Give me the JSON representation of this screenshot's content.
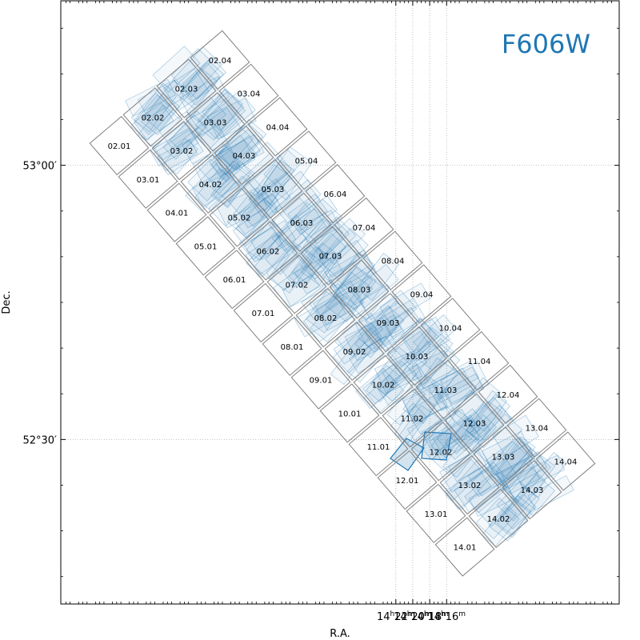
{
  "colors": {
    "accent": "#1f77b4",
    "tile_outline": "#808080",
    "grid": "#b0b0b0"
  },
  "chart_data": {
    "type": "scatter",
    "title": "",
    "filter_label": "F606W",
    "xlabel": "R.A.",
    "ylabel": "Dec.",
    "x_axis_direction": "decreasing-right",
    "xlim_min": [
      2221.6,
      2155.6
    ],
    "ylim_arcmin": [
      3132,
      3198
    ],
    "x_ticks": [
      {
        "value_min": 2182,
        "label": "14h22m"
      },
      {
        "value_min": 2180,
        "label": "14h20m"
      },
      {
        "value_min": 2178,
        "label": "14h18m"
      },
      {
        "value_min": 2176,
        "label": "14h16m"
      }
    ],
    "y_ticks": [
      {
        "value_arcmin": 3180,
        "label": "53°00′"
      },
      {
        "value_arcmin": 3150,
        "label": "52°30′"
      }
    ],
    "grid": true,
    "tile_labels": [
      "02.01",
      "02.02",
      "02.03",
      "02.04",
      "03.01",
      "03.02",
      "03.03",
      "03.04",
      "04.01",
      "04.02",
      "04.03",
      "04.04",
      "05.01",
      "05.02",
      "05.03",
      "05.04",
      "06.01",
      "06.02",
      "06.03",
      "06.04",
      "07.01",
      "07.02",
      "07.03",
      "07.04",
      "08.01",
      "08.02",
      "08.03",
      "08.04",
      "09.01",
      "09.02",
      "09.03",
      "09.04",
      "10.01",
      "10.02",
      "10.03",
      "10.04",
      "11.01",
      "11.02",
      "11.03",
      "11.04",
      "12.01",
      "12.02",
      "12.03",
      "12.04",
      "13.01",
      "13.02",
      "13.03",
      "13.04",
      "14.01",
      "14.02",
      "14.03",
      "14.04"
    ]
  }
}
